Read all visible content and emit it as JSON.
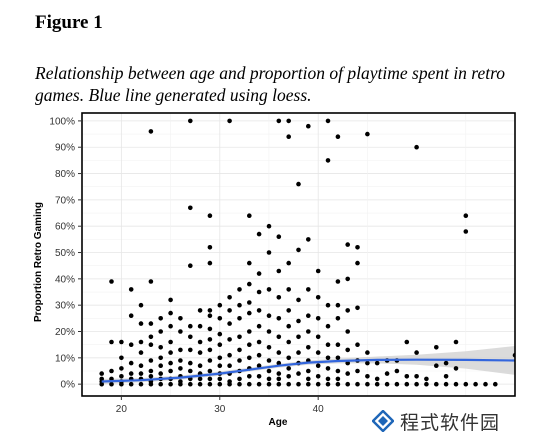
{
  "figure": {
    "label": "Figure 1",
    "caption": "Relationship between age and proportion of playtime spent in retro games. Blue line generated using loess."
  },
  "watermark": {
    "text": "程式软件园"
  },
  "chart_data": {
    "type": "scatter",
    "xlabel": "Age",
    "ylabel": "Proportion Retro Gaming",
    "xlim": [
      16,
      60
    ],
    "ylim": [
      -0.045,
      1.03
    ],
    "x_ticks": [
      20,
      30,
      40
    ],
    "x_tick_labels": [
      "20",
      "30",
      "40"
    ],
    "y_ticks": [
      0,
      0.1,
      0.2,
      0.3,
      0.4,
      0.5,
      0.6,
      0.7,
      0.8,
      0.9,
      1.0
    ],
    "y_tick_labels": [
      "0%",
      "10%",
      "20%",
      "30%",
      "40%",
      "50%",
      "60%",
      "70%",
      "80%",
      "90%",
      "100%"
    ],
    "grid": true,
    "colors": {
      "points": "#000000",
      "loess": "#3366dd",
      "band": "#cfcfcf"
    },
    "points": [
      [
        18,
        0.04
      ],
      [
        18,
        0.02
      ],
      [
        18,
        0.01
      ],
      [
        18,
        0
      ],
      [
        19,
        0.39
      ],
      [
        19,
        0.16
      ],
      [
        19,
        0.05
      ],
      [
        19,
        0.02
      ],
      [
        19,
        0
      ],
      [
        20,
        0.16
      ],
      [
        20,
        0.1
      ],
      [
        20,
        0.06
      ],
      [
        20,
        0.03
      ],
      [
        20,
        0.01
      ],
      [
        20,
        0
      ],
      [
        21,
        0.36
      ],
      [
        21,
        0.26
      ],
      [
        21,
        0.15
      ],
      [
        21,
        0.08
      ],
      [
        21,
        0.04
      ],
      [
        21,
        0.02
      ],
      [
        21,
        0
      ],
      [
        22,
        0.3
      ],
      [
        22,
        0.23
      ],
      [
        22,
        0.16
      ],
      [
        22,
        0.12
      ],
      [
        22,
        0.07
      ],
      [
        22,
        0.04
      ],
      [
        22,
        0.02
      ],
      [
        22,
        0
      ],
      [
        23,
        0.96
      ],
      [
        23,
        0.39
      ],
      [
        23,
        0.23
      ],
      [
        23,
        0.18
      ],
      [
        23,
        0.15
      ],
      [
        23,
        0.09
      ],
      [
        23,
        0.05
      ],
      [
        23,
        0.03
      ],
      [
        23,
        0.01
      ],
      [
        23,
        0
      ],
      [
        24,
        0.25
      ],
      [
        24,
        0.2
      ],
      [
        24,
        0.14
      ],
      [
        24,
        0.1
      ],
      [
        24,
        0.07
      ],
      [
        24,
        0.04
      ],
      [
        24,
        0.02
      ],
      [
        24,
        0
      ],
      [
        25,
        0.32
      ],
      [
        25,
        0.27
      ],
      [
        25,
        0.22
      ],
      [
        25,
        0.16
      ],
      [
        25,
        0.12
      ],
      [
        25,
        0.08
      ],
      [
        25,
        0.05
      ],
      [
        25,
        0.02
      ],
      [
        25,
        0
      ],
      [
        26,
        0.25
      ],
      [
        26,
        0.2
      ],
      [
        26,
        0.13
      ],
      [
        26,
        0.09
      ],
      [
        26,
        0.06
      ],
      [
        26,
        0.03
      ],
      [
        26,
        0.01
      ],
      [
        26,
        0
      ],
      [
        27,
        1.0
      ],
      [
        27,
        0.67
      ],
      [
        27,
        0.45
      ],
      [
        27,
        0.22
      ],
      [
        27,
        0.18
      ],
      [
        27,
        0.13
      ],
      [
        27,
        0.08
      ],
      [
        27,
        0.05
      ],
      [
        27,
        0.02
      ],
      [
        27,
        0
      ],
      [
        28,
        0.28
      ],
      [
        28,
        0.22
      ],
      [
        28,
        0.16
      ],
      [
        28,
        0.12
      ],
      [
        28,
        0.07
      ],
      [
        28,
        0.04
      ],
      [
        28,
        0.02
      ],
      [
        28,
        0
      ],
      [
        29,
        0.64
      ],
      [
        29,
        0.52
      ],
      [
        29,
        0.46
      ],
      [
        29,
        0.28
      ],
      [
        29,
        0.26
      ],
      [
        29,
        0.21
      ],
      [
        29,
        0.17
      ],
      [
        29,
        0.13
      ],
      [
        29,
        0.09
      ],
      [
        29,
        0.05
      ],
      [
        29,
        0.02
      ],
      [
        29,
        0
      ],
      [
        30,
        0.3
      ],
      [
        30,
        0.25
      ],
      [
        30,
        0.19
      ],
      [
        30,
        0.15
      ],
      [
        30,
        0.1
      ],
      [
        30,
        0.07
      ],
      [
        30,
        0.04
      ],
      [
        30,
        0.02
      ],
      [
        30,
        0
      ],
      [
        31,
        1.0
      ],
      [
        31,
        0.33
      ],
      [
        31,
        0.28
      ],
      [
        31,
        0.23
      ],
      [
        31,
        0.17
      ],
      [
        31,
        0.11
      ],
      [
        31,
        0.07
      ],
      [
        31,
        0.04
      ],
      [
        31,
        0.01
      ],
      [
        31,
        0
      ],
      [
        32,
        0.36
      ],
      [
        32,
        0.3
      ],
      [
        32,
        0.25
      ],
      [
        32,
        0.18
      ],
      [
        32,
        0.13
      ],
      [
        32,
        0.09
      ],
      [
        32,
        0.05
      ],
      [
        32,
        0.02
      ],
      [
        32,
        0
      ],
      [
        33,
        0.64
      ],
      [
        33,
        0.46
      ],
      [
        33,
        0.38
      ],
      [
        33,
        0.31
      ],
      [
        33,
        0.27
      ],
      [
        33,
        0.2
      ],
      [
        33,
        0.15
      ],
      [
        33,
        0.1
      ],
      [
        33,
        0.06
      ],
      [
        33,
        0.03
      ],
      [
        33,
        0
      ],
      [
        34,
        0.57
      ],
      [
        34,
        0.42
      ],
      [
        34,
        0.35
      ],
      [
        34,
        0.28
      ],
      [
        34,
        0.22
      ],
      [
        34,
        0.16
      ],
      [
        34,
        0.11
      ],
      [
        34,
        0.07
      ],
      [
        34,
        0.03
      ],
      [
        34,
        0
      ],
      [
        35,
        0.6
      ],
      [
        35,
        0.5
      ],
      [
        35,
        0.36
      ],
      [
        35,
        0.26
      ],
      [
        35,
        0.2
      ],
      [
        35,
        0.14
      ],
      [
        35,
        0.09
      ],
      [
        35,
        0.05
      ],
      [
        35,
        0.02
      ],
      [
        35,
        0
      ],
      [
        36,
        1.0
      ],
      [
        36,
        0.56
      ],
      [
        36,
        0.43
      ],
      [
        36,
        0.33
      ],
      [
        36,
        0.25
      ],
      [
        36,
        0.18
      ],
      [
        36,
        0.12
      ],
      [
        36,
        0.08
      ],
      [
        36,
        0.04
      ],
      [
        36,
        0.02
      ],
      [
        36,
        0
      ],
      [
        37,
        1.0
      ],
      [
        37,
        0.94
      ],
      [
        37,
        0.46
      ],
      [
        37,
        0.36
      ],
      [
        37,
        0.28
      ],
      [
        37,
        0.22
      ],
      [
        37,
        0.16
      ],
      [
        37,
        0.1
      ],
      [
        37,
        0.06
      ],
      [
        37,
        0.03
      ],
      [
        37,
        0
      ],
      [
        38,
        0.76
      ],
      [
        38,
        0.51
      ],
      [
        38,
        0.32
      ],
      [
        38,
        0.24
      ],
      [
        38,
        0.18
      ],
      [
        38,
        0.12
      ],
      [
        38,
        0.08
      ],
      [
        38,
        0.04
      ],
      [
        38,
        0
      ],
      [
        39,
        0.98
      ],
      [
        39,
        0.55
      ],
      [
        39,
        0.36
      ],
      [
        39,
        0.26
      ],
      [
        39,
        0.2
      ],
      [
        39,
        0.14
      ],
      [
        39,
        0.09
      ],
      [
        39,
        0.05
      ],
      [
        39,
        0.02
      ],
      [
        39,
        0
      ],
      [
        40,
        0.43
      ],
      [
        40,
        0.33
      ],
      [
        40,
        0.25
      ],
      [
        40,
        0.18
      ],
      [
        40,
        0.12
      ],
      [
        40,
        0.07
      ],
      [
        40,
        0.03
      ],
      [
        40,
        0
      ],
      [
        41,
        1.0
      ],
      [
        41,
        0.85
      ],
      [
        41,
        0.3
      ],
      [
        41,
        0.22
      ],
      [
        41,
        0.15
      ],
      [
        41,
        0.1
      ],
      [
        41,
        0.06
      ],
      [
        41,
        0.02
      ],
      [
        41,
        0
      ],
      [
        42,
        0.94
      ],
      [
        42,
        0.39
      ],
      [
        42,
        0.3
      ],
      [
        42,
        0.25
      ],
      [
        42,
        0.15
      ],
      [
        42,
        0.1
      ],
      [
        42,
        0.05
      ],
      [
        42,
        0.02
      ],
      [
        42,
        0
      ],
      [
        43,
        0.53
      ],
      [
        43,
        0.4
      ],
      [
        43,
        0.28
      ],
      [
        43,
        0.2
      ],
      [
        43,
        0.13
      ],
      [
        43,
        0.08
      ],
      [
        43,
        0.04
      ],
      [
        43,
        0
      ],
      [
        44,
        0.52
      ],
      [
        44,
        0.46
      ],
      [
        44,
        0.29
      ],
      [
        44,
        0.15
      ],
      [
        44,
        0.09
      ],
      [
        44,
        0.05
      ],
      [
        44,
        0
      ],
      [
        45,
        0.95
      ],
      [
        45,
        0.12
      ],
      [
        45,
        0.08
      ],
      [
        45,
        0.03
      ],
      [
        45,
        0
      ],
      [
        46,
        0.08
      ],
      [
        46,
        0.02
      ],
      [
        46,
        0
      ],
      [
        47,
        0.09
      ],
      [
        47,
        0.04
      ],
      [
        47,
        0
      ],
      [
        48,
        0.09
      ],
      [
        48,
        0.05
      ],
      [
        48,
        0
      ],
      [
        49,
        0.16
      ],
      [
        49,
        0.03
      ],
      [
        49,
        0
      ],
      [
        50,
        0.9
      ],
      [
        50,
        0.12
      ],
      [
        50,
        0.03
      ],
      [
        50,
        0
      ],
      [
        51,
        0.02
      ],
      [
        51,
        0
      ],
      [
        52,
        0.14
      ],
      [
        52,
        0.07
      ],
      [
        52,
        0
      ],
      [
        53,
        0.08
      ],
      [
        53,
        0.03
      ],
      [
        53,
        0
      ],
      [
        54,
        0.16
      ],
      [
        54,
        0.06
      ],
      [
        54,
        0
      ],
      [
        55,
        0.64
      ],
      [
        55,
        0.58
      ],
      [
        55,
        0
      ],
      [
        56,
        0
      ],
      [
        57,
        0
      ],
      [
        58,
        0
      ],
      [
        60,
        0.11
      ],
      [
        63,
        0
      ],
      [
        64,
        0
      ]
    ],
    "loess": [
      [
        18,
        0.01
      ],
      [
        22,
        0.015
      ],
      [
        26,
        0.025
      ],
      [
        30,
        0.04
      ],
      [
        33,
        0.055
      ],
      [
        36,
        0.07
      ],
      [
        39,
        0.082
      ],
      [
        42,
        0.088
      ],
      [
        46,
        0.092
      ],
      [
        50,
        0.093
      ],
      [
        55,
        0.092
      ],
      [
        60,
        0.09
      ],
      [
        64,
        0.088
      ]
    ],
    "loess_band": {
      "upper": [
        [
          18,
          0.02
        ],
        [
          22,
          0.023
        ],
        [
          26,
          0.033
        ],
        [
          30,
          0.048
        ],
        [
          33,
          0.062
        ],
        [
          36,
          0.077
        ],
        [
          39,
          0.09
        ],
        [
          42,
          0.097
        ],
        [
          46,
          0.105
        ],
        [
          50,
          0.112
        ],
        [
          55,
          0.125
        ],
        [
          60,
          0.145
        ],
        [
          64,
          0.165
        ]
      ],
      "lower": [
        [
          18,
          0.0
        ],
        [
          22,
          0.007
        ],
        [
          26,
          0.017
        ],
        [
          30,
          0.032
        ],
        [
          33,
          0.048
        ],
        [
          36,
          0.063
        ],
        [
          39,
          0.074
        ],
        [
          42,
          0.079
        ],
        [
          46,
          0.079
        ],
        [
          50,
          0.074
        ],
        [
          55,
          0.059
        ],
        [
          60,
          0.035
        ],
        [
          64,
          0.011
        ]
      ]
    }
  }
}
